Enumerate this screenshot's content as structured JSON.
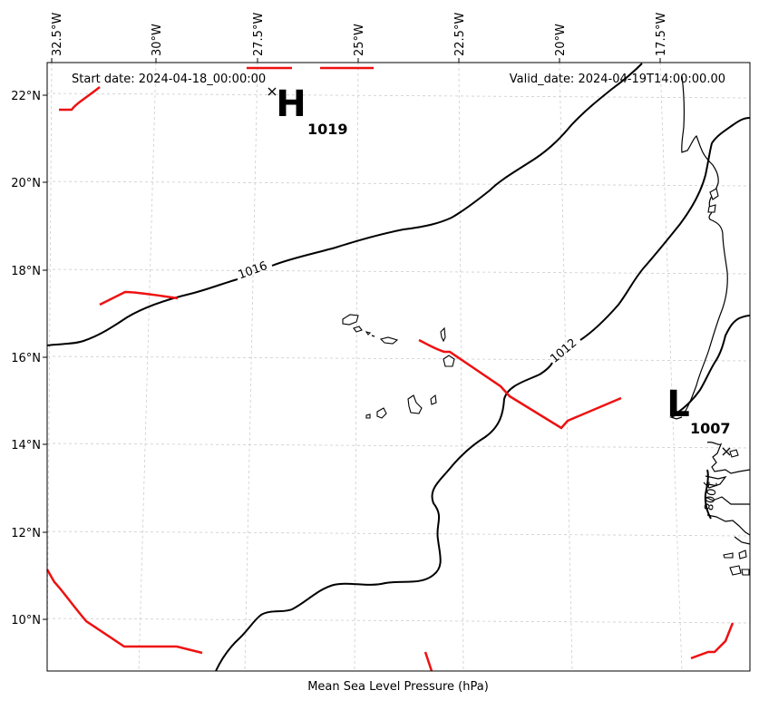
{
  "map": {
    "caption": "Mean Sea Level Pressure (hPa)",
    "start_date": "Start date: 2024-04-18_00:00:00",
    "valid_date": "Valid_date: 2024-04-19T14:00:00.00",
    "lon_labels": [
      "32.5°W",
      "30°W",
      "27.5°W",
      "25°W",
      "22.5°W",
      "20°W",
      "17.5°W"
    ],
    "lat_labels": [
      "22°N",
      "20°N",
      "18°N",
      "16°N",
      "14°N",
      "12°N",
      "10°N"
    ],
    "isobar_labels": [
      "1016",
      "1012",
      "1008"
    ],
    "high": {
      "letter": "H",
      "value": "1019"
    },
    "low": {
      "letter": "L",
      "value": "1007"
    },
    "colors": {
      "isobar": "#000000",
      "front": "#ee1111",
      "grid": "#cccccc"
    }
  }
}
